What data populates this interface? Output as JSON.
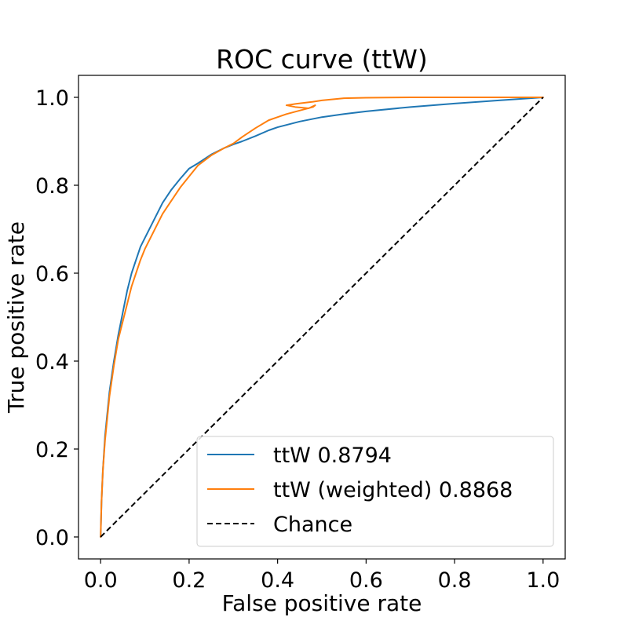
{
  "chart_data": {
    "type": "line",
    "title": "ROC curve (ttW)",
    "xlabel": "False positive rate",
    "ylabel": "True positive rate",
    "xlim": [
      -0.05,
      1.05
    ],
    "ylim": [
      -0.05,
      1.05
    ],
    "xticks": [
      0.0,
      0.2,
      0.4,
      0.6,
      0.8,
      1.0
    ],
    "yticks": [
      0.0,
      0.2,
      0.4,
      0.6,
      0.8,
      1.0
    ],
    "xtick_labels": [
      "0.0",
      "0.2",
      "0.4",
      "0.6",
      "0.8",
      "1.0"
    ],
    "ytick_labels": [
      "0.0",
      "0.2",
      "0.4",
      "0.6",
      "0.8",
      "1.0"
    ],
    "grid": false,
    "legend_position": "lower-right",
    "series": [
      {
        "name": "ttW 0.8794",
        "color": "#1f77b4",
        "style": "solid",
        "x": [
          0.0,
          0.002,
          0.005,
          0.01,
          0.015,
          0.02,
          0.03,
          0.04,
          0.05,
          0.06,
          0.07,
          0.08,
          0.09,
          0.1,
          0.12,
          0.14,
          0.16,
          0.18,
          0.2,
          0.22,
          0.25,
          0.28,
          0.3,
          0.32,
          0.35,
          0.38,
          0.4,
          0.45,
          0.5,
          0.55,
          0.6,
          0.7,
          0.8,
          0.9,
          1.0
        ],
        "y": [
          0.0,
          0.08,
          0.15,
          0.23,
          0.28,
          0.33,
          0.4,
          0.46,
          0.51,
          0.56,
          0.6,
          0.63,
          0.66,
          0.68,
          0.72,
          0.76,
          0.79,
          0.815,
          0.838,
          0.85,
          0.87,
          0.885,
          0.893,
          0.9,
          0.912,
          0.925,
          0.932,
          0.945,
          0.955,
          0.962,
          0.968,
          0.978,
          0.986,
          0.993,
          1.0
        ]
      },
      {
        "name": "ttW (weighted) 0.8868",
        "color": "#ff7f0e",
        "style": "solid",
        "x": [
          0.0,
          0.002,
          0.005,
          0.01,
          0.015,
          0.02,
          0.03,
          0.04,
          0.05,
          0.06,
          0.07,
          0.08,
          0.09,
          0.1,
          0.12,
          0.14,
          0.16,
          0.18,
          0.2,
          0.22,
          0.25,
          0.28,
          0.3,
          0.32,
          0.35,
          0.38,
          0.4,
          0.42,
          0.45,
          0.48,
          0.485,
          0.47,
          0.44,
          0.42,
          0.44,
          0.48,
          0.5,
          0.55,
          0.6,
          0.7,
          0.8,
          0.9,
          1.0
        ],
        "y": [
          0.0,
          0.08,
          0.15,
          0.22,
          0.27,
          0.32,
          0.39,
          0.45,
          0.49,
          0.53,
          0.57,
          0.6,
          0.63,
          0.655,
          0.695,
          0.735,
          0.765,
          0.795,
          0.82,
          0.845,
          0.868,
          0.885,
          0.895,
          0.91,
          0.93,
          0.948,
          0.955,
          0.962,
          0.97,
          0.978,
          0.982,
          0.975,
          0.978,
          0.982,
          0.985,
          0.99,
          0.993,
          0.998,
          0.999,
          1.0,
          1.0,
          1.0,
          1.0
        ]
      },
      {
        "name": "Chance",
        "color": "#000000",
        "style": "dashed",
        "x": [
          0.0,
          1.0
        ],
        "y": [
          0.0,
          1.0
        ]
      }
    ]
  }
}
